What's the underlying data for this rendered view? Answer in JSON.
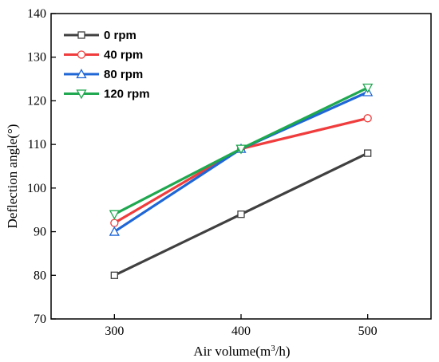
{
  "chart_data": {
    "type": "line",
    "x": [
      300,
      400,
      500
    ],
    "series": [
      {
        "name": "0 rpm",
        "values": [
          80,
          94,
          108
        ],
        "color": "#404040",
        "marker": "square"
      },
      {
        "name": "40 rpm",
        "values": [
          92,
          109,
          116
        ],
        "color": "#f03c3c",
        "marker": "circle"
      },
      {
        "name": "80 rpm",
        "values": [
          90,
          109,
          122
        ],
        "color": "#1f66d6",
        "marker": "triangle-up"
      },
      {
        "name": "120 rpm",
        "values": [
          94,
          109,
          123
        ],
        "color": "#1fa84f",
        "marker": "triangle-down"
      }
    ],
    "xlabel": "Air volume(m",
    "xlabel_sup": "3",
    "xlabel_tail": "/h)",
    "ylabel": "Deflection angle(°)",
    "xlim": [
      250,
      550
    ],
    "ylim": [
      70,
      140
    ],
    "xticks": [
      "300",
      "400",
      "500"
    ],
    "yticks": [
      "70",
      "80",
      "90",
      "100",
      "110",
      "120",
      "130",
      "140"
    ],
    "grid": false,
    "legend_position": "top-left"
  }
}
